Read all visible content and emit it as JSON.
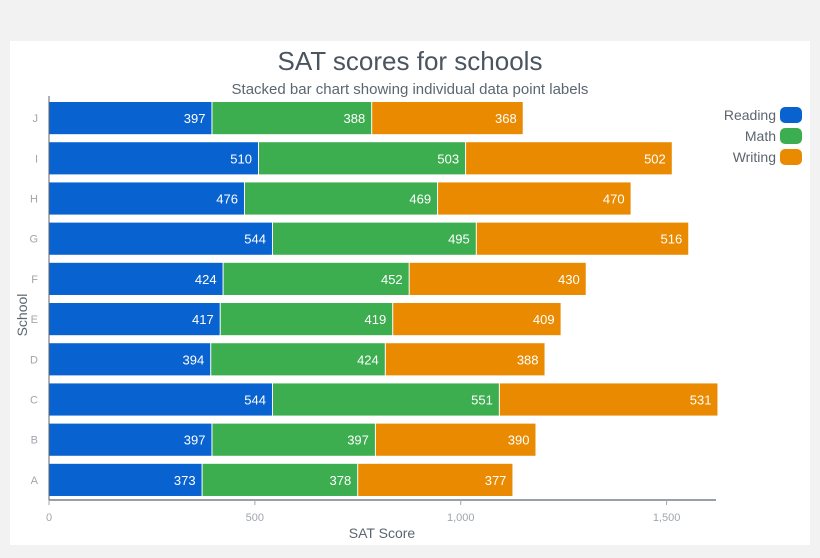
{
  "chart_data": {
    "type": "bar",
    "orientation": "horizontal",
    "stacked": true,
    "title": "SAT scores for schools",
    "subtitle": "Stacked bar chart showing individual data point labels",
    "xlabel": "SAT Score",
    "ylabel": "School",
    "xlim": [
      0,
      1620
    ],
    "xticks": [
      0,
      500,
      1000,
      1500
    ],
    "xtick_labels": [
      "0",
      "500",
      "1,000",
      "1,500"
    ],
    "categories": [
      "A",
      "B",
      "C",
      "D",
      "E",
      "F",
      "G",
      "H",
      "I",
      "J"
    ],
    "series": [
      {
        "name": "Reading",
        "color": "#0862d0",
        "values": [
          373,
          397,
          544,
          394,
          417,
          424,
          544,
          476,
          510,
          397
        ]
      },
      {
        "name": "Math",
        "color": "#3cae4f",
        "values": [
          378,
          397,
          551,
          424,
          419,
          452,
          495,
          469,
          503,
          388
        ]
      },
      {
        "name": "Writing",
        "color": "#e98a00",
        "values": [
          377,
          390,
          531,
          388,
          409,
          430,
          516,
          470,
          502,
          368
        ]
      }
    ],
    "legend_position": "top-right",
    "data_labels": true
  }
}
